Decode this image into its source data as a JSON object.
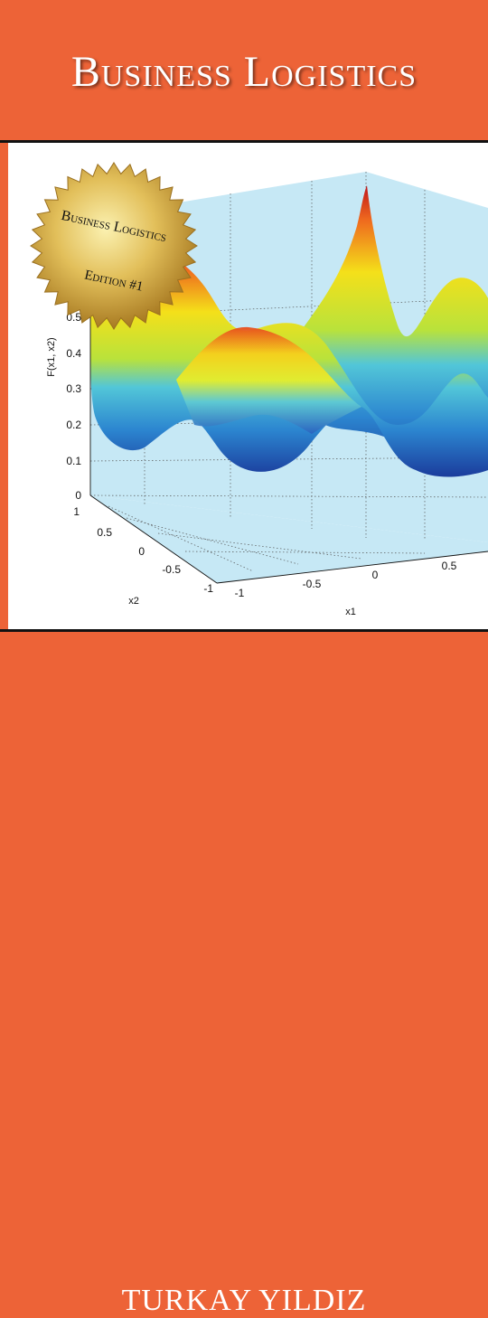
{
  "cover": {
    "title": "Business Logistics",
    "author": "TURKAY YILDIZ",
    "badge": {
      "line1": "Business Logistics",
      "line2": "Edition #1"
    }
  },
  "colors": {
    "band": "#ed6337",
    "rule": "#111111",
    "pane": "#c6e8f5",
    "badge_gold": "#d8b04a"
  },
  "plot": {
    "zlabel": "F(x1, x2)",
    "xlabel": "x1",
    "ylabel": "x2",
    "z_ticks": [
      "0",
      "0.1",
      "0.2",
      "0.3",
      "0.4",
      "0.5"
    ],
    "x_ticks": [
      "-1",
      "-0.5",
      "0",
      "0.5"
    ],
    "y_ticks": [
      "1",
      "0.5",
      "0",
      "-0.5",
      "-1"
    ]
  }
}
